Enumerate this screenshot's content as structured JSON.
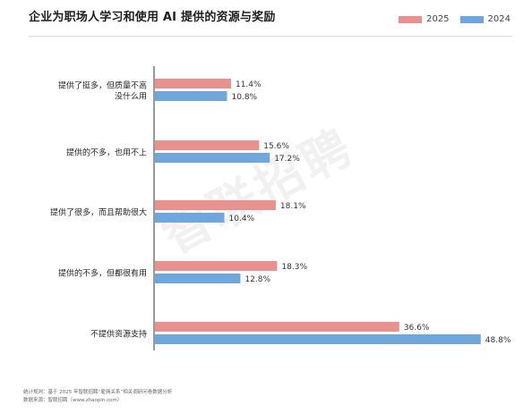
{
  "chart_data": {
    "type": "bar",
    "orientation": "horizontal",
    "title": "企业为职场人学习和使用 AI 提供的资源与奖励",
    "categories": [
      [
        "提供了挺多，但质量不高",
        "没什么用"
      ],
      [
        "提供的不多，也用不上"
      ],
      [
        "提供了很多，而且帮助很大"
      ],
      [
        "提供的不多，但都很有用"
      ],
      [
        "不提供资源支持"
      ]
    ],
    "series": [
      {
        "name": "2025",
        "color": "#e8918f",
        "values": [
          11.4,
          15.6,
          18.1,
          18.3,
          36.6
        ],
        "labels": [
          "11.4%",
          "15.6%",
          "18.1%",
          "18.3%",
          "36.6%"
        ]
      },
      {
        "name": "2024",
        "color": "#6fa7dc",
        "values": [
          10.8,
          17.2,
          10.4,
          12.8,
          48.8
        ],
        "labels": [
          "10.8%",
          "17.2%",
          "10.4%",
          "12.8%",
          "48.8%"
        ]
      }
    ],
    "xlim": [
      0,
      55
    ],
    "grid": false,
    "legend": "top-right"
  },
  "watermark": "智联招聘",
  "footnotes": {
    "stats": "统计规则：基于 2025 年智联招聘“雇佣关系”相关调研问卷数据分析",
    "source": "数据来源：智联招聘（www.zhaopin.com）"
  }
}
